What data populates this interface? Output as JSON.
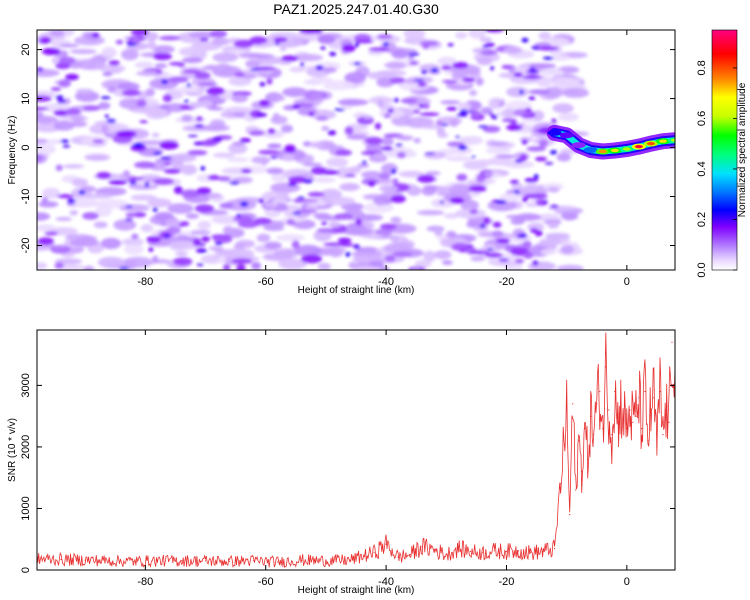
{
  "title": "PAZ1.2025.247.01.40.G30",
  "chart_data": [
    {
      "type": "heatmap",
      "xlabel": "Height of straight line (km)",
      "ylabel": "Frequency (Hz)",
      "xlim": [
        -98,
        8
      ],
      "ylim": [
        -25,
        24
      ],
      "xticks": [
        -80,
        -60,
        -40,
        -20,
        0
      ],
      "yticks": [
        -20,
        -10,
        0,
        10,
        20
      ],
      "colorbar": {
        "label": "Normalized spectral amplitude",
        "range": [
          0,
          0.95
        ],
        "ticks": [
          0.0,
          0.2,
          0.4,
          0.6,
          0.8
        ],
        "colormap": [
          "#ffffff",
          "#b37fff",
          "#7f00ff",
          "#0000ff",
          "#00c8ff",
          "#00ff80",
          "#00ff00",
          "#c8ff00",
          "#ffff00",
          "#ff8000",
          "#ff0000",
          "#ff0080"
        ]
      },
      "features": {
        "noise_region_x": [
          -98,
          -12
        ],
        "noise_level": 0.25,
        "signal_track": [
          {
            "x": -12,
            "y": 3,
            "value": 0.3
          },
          {
            "x": -10,
            "y": 2.5,
            "value": 0.25
          },
          {
            "x": -8,
            "y": 0.5,
            "value": 0.2
          },
          {
            "x": -6,
            "y": -0.5,
            "value": 0.4
          },
          {
            "x": -4,
            "y": -0.8,
            "value": 0.75
          },
          {
            "x": -2,
            "y": -0.6,
            "value": 0.7
          },
          {
            "x": 0,
            "y": -0.3,
            "value": 0.6
          },
          {
            "x": 2,
            "y": 0.2,
            "value": 0.9
          },
          {
            "x": 4,
            "y": 0.8,
            "value": 0.8
          },
          {
            "x": 6,
            "y": 1.3,
            "value": 0.7
          },
          {
            "x": 8,
            "y": 1.5,
            "value": 0.6
          }
        ]
      }
    },
    {
      "type": "line",
      "xlabel": "Height of straight line (km)",
      "ylabel": "SNR (10 * v/v)",
      "xlim": [
        -98,
        8
      ],
      "ylim": [
        0,
        3900
      ],
      "xticks": [
        -80,
        -60,
        -40,
        -20,
        0
      ],
      "yticks": [
        0,
        1000,
        2000,
        3000
      ],
      "series": [
        {
          "color": "#e83030",
          "x": [
            -98,
            -94,
            -90,
            -86,
            -82,
            -78,
            -74,
            -70,
            -66,
            -62,
            -58,
            -54,
            -50,
            -46,
            -42,
            -40,
            -38,
            -36,
            -34,
            -32,
            -30,
            -28,
            -26,
            -24,
            -22,
            -20,
            -18,
            -16,
            -14,
            -12,
            -11,
            -10,
            -9.5,
            -9,
            -8.5,
            -8,
            -7.5,
            -7,
            -6.5,
            -6,
            -5.5,
            -5,
            -4.5,
            -4,
            -3.5,
            -3,
            -2.5,
            -2,
            -1.5,
            -1,
            -0.5,
            0,
            0.5,
            1,
            1.5,
            2,
            2.5,
            3,
            3.5,
            4,
            4.5,
            5,
            5.5,
            6,
            6.5,
            7,
            7.5,
            8
          ],
          "values": [
            180,
            170,
            160,
            150,
            140,
            150,
            150,
            150,
            140,
            150,
            130,
            160,
            150,
            160,
            280,
            420,
            210,
            250,
            380,
            330,
            250,
            350,
            300,
            280,
            310,
            300,
            310,
            280,
            300,
            350,
            1400,
            2600,
            900,
            2700,
            1300,
            2100,
            1600,
            2300,
            1800,
            2500,
            2200,
            2700,
            2900,
            2300,
            3300,
            2600,
            2200,
            2900,
            2400,
            2700,
            2500,
            2300,
            2600,
            2400,
            2500,
            2800,
            2300,
            2900,
            2100,
            2600,
            2800,
            2000,
            2900,
            2200,
            2600,
            2400,
            3700,
            3300
          ]
        }
      ]
    }
  ]
}
